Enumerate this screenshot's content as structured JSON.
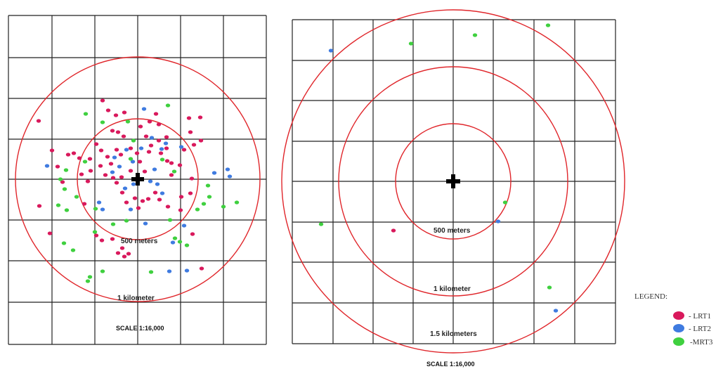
{
  "colors": {
    "LRT1": "#d9195c",
    "LRT2": "#3f7be0",
    "MRT3": "#3fd03f",
    "ring": "#e0262b",
    "grid": "#222222"
  },
  "left_map": {
    "ring_labels": [
      "500 meters",
      "1 kilometer"
    ],
    "scale": "SCALE 1:16,000",
    "points": {
      "LRT1": [
        [
          55,
          172
        ],
        [
          146,
          143
        ],
        [
          154,
          157
        ],
        [
          165,
          164
        ],
        [
          177,
          160
        ],
        [
          200,
          180
        ],
        [
          213,
          173
        ],
        [
          222,
          162
        ],
        [
          226,
          177
        ],
        [
          208,
          194
        ],
        [
          215,
          207
        ],
        [
          226,
          200
        ],
        [
          237,
          211
        ],
        [
          237,
          195
        ],
        [
          269,
          168
        ],
        [
          285,
          167
        ],
        [
          271,
          188
        ],
        [
          286,
          200
        ],
        [
          276,
          206
        ],
        [
          262,
          213
        ],
        [
          160,
          186
        ],
        [
          168,
          188
        ],
        [
          176,
          194
        ],
        [
          166,
          213
        ],
        [
          172,
          220
        ],
        [
          186,
          211
        ],
        [
          195,
          218
        ],
        [
          199,
          230
        ],
        [
          206,
          244
        ],
        [
          212,
          216
        ],
        [
          229,
          218
        ],
        [
          238,
          229
        ],
        [
          244,
          249
        ],
        [
          244,
          232
        ],
        [
          137,
          205
        ],
        [
          144,
          214
        ],
        [
          153,
          223
        ],
        [
          158,
          233
        ],
        [
          143,
          236
        ],
        [
          128,
          226
        ],
        [
          129,
          243
        ],
        [
          150,
          249
        ],
        [
          161,
          253
        ],
        [
          166,
          260
        ],
        [
          173,
          252
        ],
        [
          186,
          243
        ],
        [
          125,
          258
        ],
        [
          116,
          248
        ],
        [
          113,
          225
        ],
        [
          105,
          218
        ],
        [
          97,
          220
        ],
        [
          74,
          214
        ],
        [
          82,
          237
        ],
        [
          89,
          259
        ],
        [
          174,
          274
        ],
        [
          180,
          288
        ],
        [
          192,
          282
        ],
        [
          203,
          286
        ],
        [
          197,
          296
        ],
        [
          211,
          283
        ],
        [
          221,
          274
        ],
        [
          227,
          284
        ],
        [
          239,
          294
        ],
        [
          257,
          299
        ],
        [
          258,
          280
        ],
        [
          271,
          275
        ],
        [
          120,
          290
        ],
        [
          56,
          293
        ],
        [
          71,
          332
        ],
        [
          137,
          335
        ],
        [
          145,
          342
        ],
        [
          160,
          340
        ],
        [
          168,
          360
        ],
        [
          177,
          365
        ],
        [
          183,
          361
        ],
        [
          174,
          353
        ],
        [
          274,
          333
        ],
        [
          287,
          382
        ],
        [
          273,
          254
        ],
        [
          256,
          235
        ]
      ],
      "LRT2": [
        [
          205,
          155
        ],
        [
          216,
          196
        ],
        [
          236,
          204
        ],
        [
          258,
          209
        ],
        [
          201,
          211
        ],
        [
          180,
          213
        ],
        [
          189,
          230
        ],
        [
          163,
          224
        ],
        [
          170,
          237
        ],
        [
          160,
          245
        ],
        [
          178,
          268
        ],
        [
          190,
          262
        ],
        [
          214,
          258
        ],
        [
          224,
          262
        ],
        [
          231,
          275
        ],
        [
          141,
          288
        ],
        [
          146,
          298
        ],
        [
          186,
          298
        ],
        [
          207,
          318
        ],
        [
          262,
          321
        ],
        [
          246,
          345
        ],
        [
          241,
          386
        ],
        [
          266,
          385
        ],
        [
          324,
          241
        ],
        [
          327,
          251
        ],
        [
          305,
          246
        ],
        [
          67,
          236
        ],
        [
          220,
          241
        ],
        [
          230,
          212
        ]
      ],
      "MRT3": [
        [
          122,
          162
        ],
        [
          146,
          174
        ],
        [
          182,
          173
        ],
        [
          239,
          150
        ],
        [
          190,
          200
        ],
        [
          248,
          244
        ],
        [
          94,
          242
        ],
        [
          92,
          269
        ],
        [
          95,
          299
        ],
        [
          109,
          280
        ],
        [
          83,
          292
        ],
        [
          91,
          346
        ],
        [
          104,
          356
        ],
        [
          136,
          297
        ],
        [
          135,
          330
        ],
        [
          161,
          319
        ],
        [
          180,
          314
        ],
        [
          249,
          339
        ],
        [
          256,
          344
        ],
        [
          266,
          349
        ],
        [
          242,
          313
        ],
        [
          281,
          298
        ],
        [
          290,
          290
        ],
        [
          296,
          264
        ],
        [
          298,
          280
        ],
        [
          318,
          294
        ],
        [
          337,
          288
        ],
        [
          215,
          387
        ],
        [
          146,
          386
        ],
        [
          128,
          394
        ],
        [
          125,
          400
        ],
        [
          86,
          255
        ],
        [
          121,
          230
        ],
        [
          186,
          226
        ],
        [
          231,
          227
        ]
      ]
    }
  },
  "right_map": {
    "ring_labels": [
      "500 meters",
      "1 kilometer",
      "1.5 kilometers"
    ],
    "scale": "SCALE 1:16,000",
    "points": {
      "LRT1": [
        [
          560,
          328
        ]
      ],
      "LRT2": [
        [
          471,
          72
        ],
        [
          709,
          315
        ],
        [
          791,
          442
        ]
      ],
      "MRT3": [
        [
          585,
          62
        ],
        [
          676,
          50
        ],
        [
          780,
          36
        ],
        [
          719,
          288
        ],
        [
          457,
          319
        ],
        [
          782,
          409
        ]
      ]
    }
  },
  "legend": {
    "title": "LEGEND:",
    "items": [
      {
        "key": "LRT1",
        "label": "- LRT1"
      },
      {
        "key": "LRT2",
        "label": "- LRT2"
      },
      {
        "key": "MRT3",
        "label": "-MRT3"
      }
    ]
  }
}
